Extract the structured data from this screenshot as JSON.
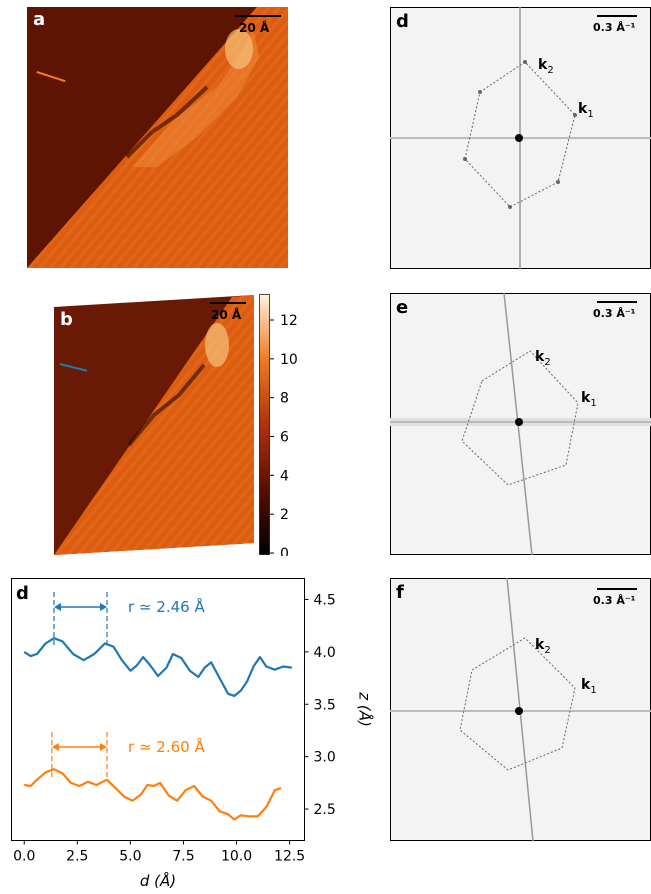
{
  "panels": {
    "a": {
      "letter": "a",
      "scalebar_label": "20 Å",
      "line_color": "#ff7f0e"
    },
    "b": {
      "letter": "b",
      "scalebar_label": "20 Å",
      "line_color": "#1f77b4",
      "colorbar_ticks": [
        "0",
        "2",
        "4",
        "6",
        "8",
        "10",
        "12"
      ]
    },
    "d_fft": {
      "letter": "d",
      "scalebar_label": "0.3 Å⁻¹",
      "k1": "k",
      "k1_sub": "1",
      "k2": "k",
      "k2_sub": "2"
    },
    "e_fft": {
      "letter": "e",
      "scalebar_label": "0.3 Å⁻¹",
      "k1": "k",
      "k1_sub": "1",
      "k2": "k",
      "k2_sub": "2"
    },
    "f_fft": {
      "letter": "f",
      "scalebar_label": "0.3 Å⁻¹",
      "k1": "k",
      "k1_sub": "1",
      "k2": "k",
      "k2_sub": "2"
    },
    "d_profile": {
      "letter": "d"
    }
  },
  "chart_data": {
    "type": "line",
    "xlabel": "d (Å)",
    "ylabel": "z (Å)",
    "xlim": [
      -0.6,
      13.2
    ],
    "ylim": [
      2.2,
      4.7
    ],
    "xticks": [
      "0.0",
      "2.5",
      "5.0",
      "7.5",
      "10.0",
      "12.5"
    ],
    "xtick_values": [
      0,
      2.5,
      5,
      7.5,
      10,
      12.5
    ],
    "yticks": [
      "2.5",
      "3.0",
      "3.5",
      "4.0",
      "4.5"
    ],
    "ytick_values": [
      2.5,
      3.0,
      3.5,
      4.0,
      4.5
    ],
    "series": [
      {
        "color": "#1f77b4",
        "x": [
          0,
          0.3,
          0.6,
          1.0,
          1.4,
          1.8,
          2.3,
          2.8,
          3.3,
          3.8,
          4.2,
          4.6,
          5.0,
          5.3,
          5.6,
          5.9,
          6.3,
          6.7,
          7.0,
          7.4,
          7.8,
          8.2,
          8.5,
          8.8,
          9.2,
          9.6,
          9.9,
          10.2,
          10.5,
          10.8,
          11.1,
          11.4,
          11.8,
          12.2,
          12.6
        ],
        "y": [
          4.0,
          3.96,
          3.98,
          4.08,
          4.13,
          4.1,
          3.98,
          3.92,
          3.98,
          4.08,
          4.05,
          3.92,
          3.82,
          3.87,
          3.95,
          3.88,
          3.77,
          3.85,
          3.98,
          3.94,
          3.82,
          3.76,
          3.85,
          3.9,
          3.75,
          3.6,
          3.58,
          3.63,
          3.72,
          3.86,
          3.95,
          3.86,
          3.83,
          3.86,
          3.85
        ],
        "annotation": "r ≃ 2.46 Å",
        "marker_x": [
          1.4,
          3.9
        ]
      },
      {
        "color": "#ff7f0e",
        "x": [
          0,
          0.3,
          0.6,
          1.0,
          1.4,
          1.8,
          2.2,
          2.6,
          3.0,
          3.4,
          3.9,
          4.3,
          4.7,
          5.1,
          5.5,
          5.8,
          6.1,
          6.4,
          6.8,
          7.2,
          7.6,
          8.0,
          8.4,
          8.8,
          9.2,
          9.6,
          9.9,
          10.2,
          10.6,
          11.0,
          11.4,
          11.8,
          12.1
        ],
        "y": [
          2.73,
          2.72,
          2.78,
          2.85,
          2.88,
          2.84,
          2.75,
          2.72,
          2.76,
          2.73,
          2.78,
          2.7,
          2.62,
          2.58,
          2.64,
          2.73,
          2.72,
          2.75,
          2.63,
          2.58,
          2.68,
          2.72,
          2.62,
          2.58,
          2.48,
          2.45,
          2.4,
          2.44,
          2.43,
          2.43,
          2.52,
          2.68,
          2.7
        ],
        "annotation": "r ≃ 2.60 Å",
        "marker_x": [
          1.3,
          3.9
        ]
      }
    ]
  }
}
